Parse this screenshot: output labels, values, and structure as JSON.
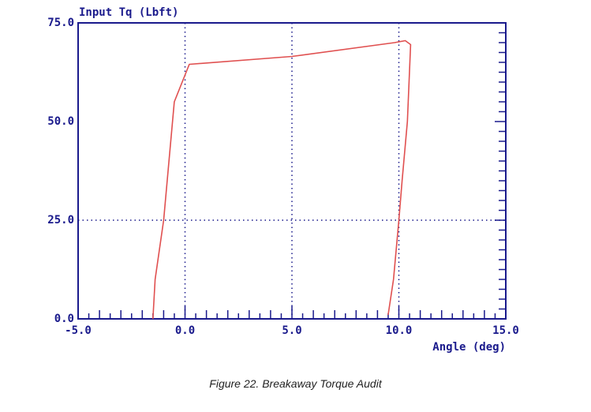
{
  "chart_data": {
    "type": "line",
    "ylabel": "Input Tq (Lbft)",
    "xlabel": "Angle (deg)",
    "xlim": [
      -5,
      15
    ],
    "ylim": [
      0,
      75
    ],
    "x_ticks": [
      "-5.0",
      "0.0",
      "5.0",
      "10.0",
      "15.0"
    ],
    "y_ticks": [
      "0.0",
      "25.0",
      "50.0",
      "75.0"
    ],
    "x_grid_at": [
      0,
      5,
      10
    ],
    "y_grid_at": [
      25
    ],
    "grid": "dotted",
    "series": [
      {
        "color": "#e05050",
        "x": [
          -1.5,
          -1.4,
          -1.0,
          -0.5,
          0.05,
          0.2,
          5.0,
          9.8,
          10.3,
          10.55,
          10.4,
          10.15,
          10.0,
          9.75,
          9.5
        ],
        "y": [
          0,
          10,
          25,
          55,
          62.5,
          64.5,
          66.5,
          70,
          70.5,
          69.5,
          50,
          35,
          25,
          10,
          1
        ]
      }
    ]
  },
  "figure": {
    "caption": "Figure 22. Breakaway Torque Audit"
  },
  "colors": {
    "axis": "#1a1a8c",
    "grid": "#1a1a8c",
    "line": "#e05050"
  }
}
